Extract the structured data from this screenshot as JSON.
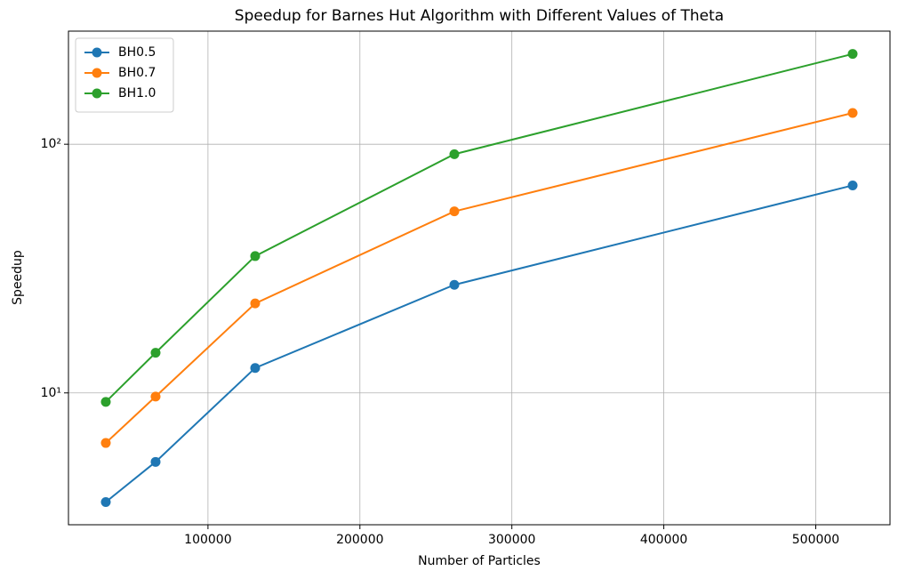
{
  "chart_data": {
    "type": "line",
    "title": "Speedup for Barnes Hut Algorithm with Different Values of Theta",
    "x_label": "Number of Particles",
    "y_label": "Speedup",
    "x": [
      32768,
      65536,
      131072,
      262144,
      524288
    ],
    "series": [
      {
        "name": "BH0.5",
        "color": "#1f77b4",
        "values": [
          3.64,
          5.28,
          12.6,
          27.2,
          68.3
        ]
      },
      {
        "name": "BH0.7",
        "color": "#ff7f0e",
        "values": [
          6.29,
          9.67,
          22.9,
          53.7,
          133.6
        ]
      },
      {
        "name": "BH1.0",
        "color": "#2ca02c",
        "values": [
          9.2,
          14.5,
          35.5,
          91.2,
          230.7
        ]
      }
    ],
    "xlim": [
      8192,
      548864
    ],
    "xticks": [
      100000,
      200000,
      300000,
      400000,
      500000
    ],
    "ylim": [
      2.95,
      285
    ],
    "y_scale": "log",
    "yticks": [
      {
        "value": 10,
        "label": "10¹"
      },
      {
        "value": 100,
        "label": "10²"
      }
    ],
    "grid": true,
    "legend": "upper left"
  }
}
